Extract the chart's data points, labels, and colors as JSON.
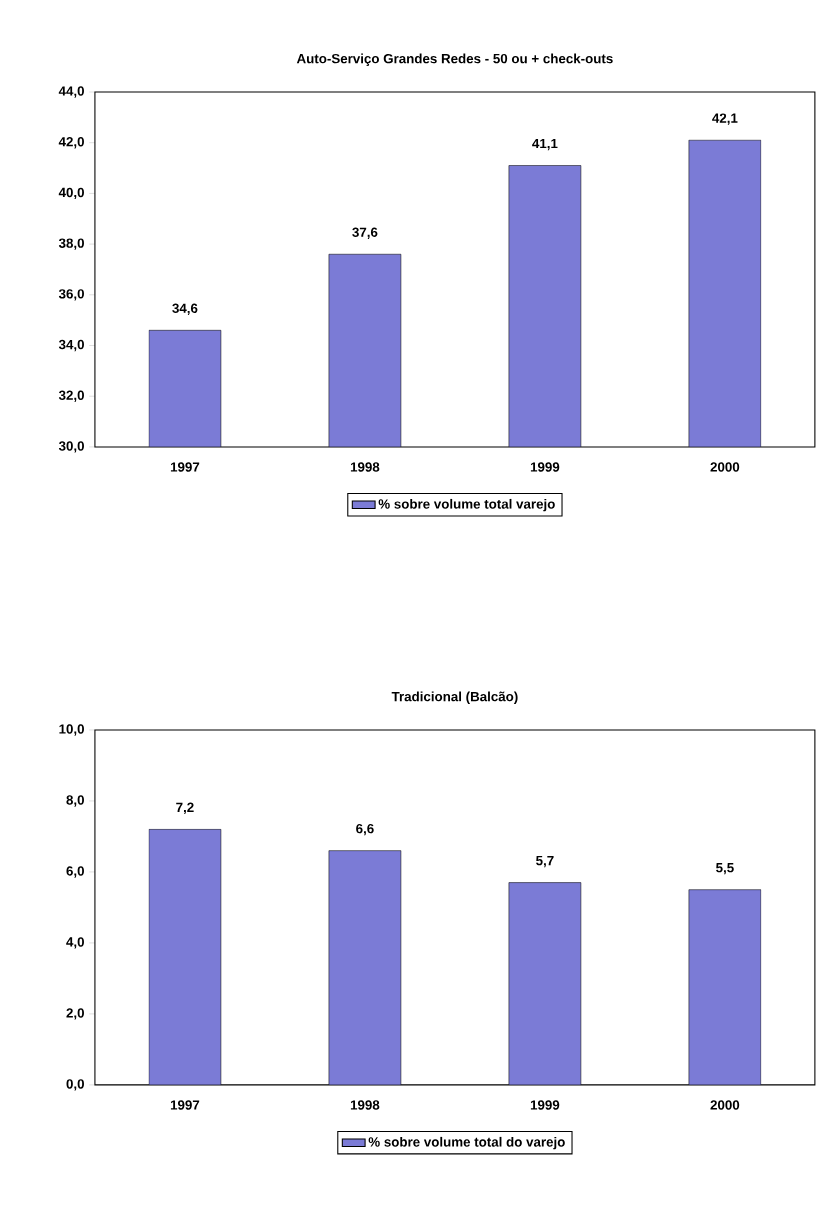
{
  "chart_data": [
    {
      "type": "bar",
      "title": "Auto-Serviço Grandes Redes - 50 ou + check-outs",
      "categories": [
        "1997",
        "1998",
        "1999",
        "2000"
      ],
      "series": [
        {
          "name": "% sobre volume total varejo",
          "color": "#7b7bd6",
          "values": [
            34.6,
            37.6,
            41.1,
            42.1
          ],
          "value_labels": [
            "34,6",
            "37,6",
            "41,1",
            "42,1"
          ]
        }
      ],
      "ylim": [
        30,
        44
      ],
      "yticks": [
        {
          "value": 30,
          "label": "30,0"
        },
        {
          "value": 32,
          "label": "32,0"
        },
        {
          "value": 34,
          "label": "34,0"
        },
        {
          "value": 36,
          "label": "36,0"
        },
        {
          "value": 38,
          "label": "38,0"
        },
        {
          "value": 40,
          "label": "40,0"
        },
        {
          "value": 42,
          "label": "42,0"
        },
        {
          "value": 44,
          "label": "44,0"
        }
      ],
      "grid": false,
      "legend": "bottom"
    },
    {
      "type": "bar",
      "title": "Tradicional (Balcão)",
      "categories": [
        "1997",
        "1998",
        "1999",
        "2000"
      ],
      "series": [
        {
          "name": "% sobre volume total do varejo",
          "color": "#7b7bd6",
          "values": [
            7.2,
            6.6,
            5.7,
            5.5
          ],
          "value_labels": [
            "7,2",
            "6,6",
            "5,7",
            "5,5"
          ]
        }
      ],
      "ylim": [
        0,
        10
      ],
      "yticks": [
        {
          "value": 0,
          "label": "0,0"
        },
        {
          "value": 2,
          "label": "2,0"
        },
        {
          "value": 4,
          "label": "4,0"
        },
        {
          "value": 6,
          "label": "6,0"
        },
        {
          "value": 8,
          "label": "8,0"
        },
        {
          "value": 10,
          "label": "10,0"
        }
      ],
      "grid": false,
      "legend": "bottom"
    }
  ]
}
